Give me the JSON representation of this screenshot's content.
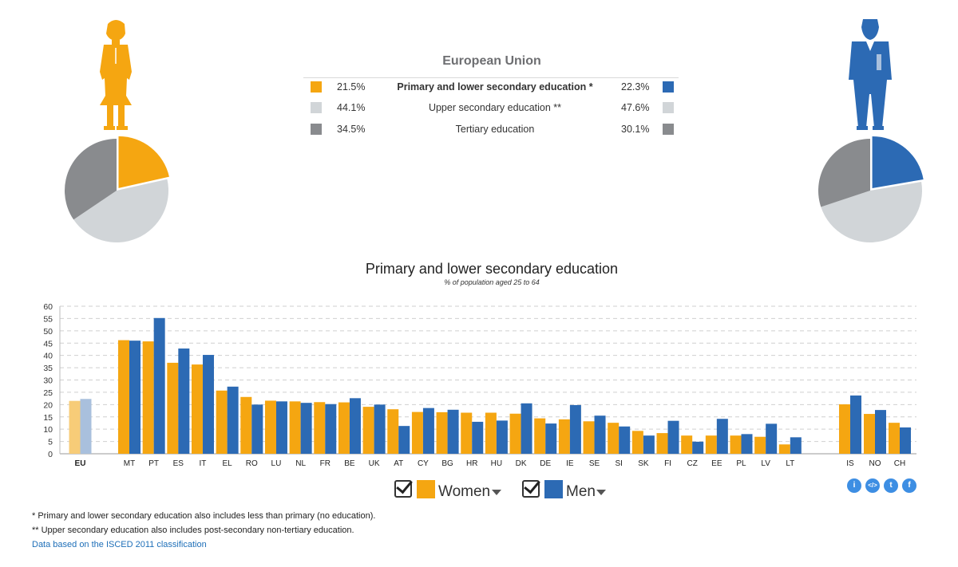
{
  "colors": {
    "women": "#f5a611",
    "men": "#2c6ab4",
    "upper": "#d1d5d8",
    "tertiary": "#898b8e",
    "eu_women": "#f7cc78",
    "eu_men": "#a9c0dd"
  },
  "eu_summary": {
    "title": "European Union",
    "rows": [
      {
        "women": "21.5%",
        "label": "Primary and lower secondary education *",
        "men": "22.3%"
      },
      {
        "women": "44.1%",
        "label": "Upper secondary education **",
        "men": "47.6%"
      },
      {
        "women": "34.5%",
        "label": "Tertiary education",
        "men": "30.1%"
      }
    ]
  },
  "pies": {
    "women": [
      21.5,
      44.1,
      34.5
    ],
    "men": [
      22.3,
      47.6,
      30.1
    ]
  },
  "chart_data": {
    "type": "bar",
    "title": "Primary and lower secondary education",
    "subtitle": "% of population aged 25 to 64",
    "ylim": [
      0,
      60
    ],
    "yticks": [
      0,
      5,
      10,
      15,
      20,
      25,
      30,
      35,
      40,
      45,
      50,
      55,
      60
    ],
    "grid": true,
    "categories": [
      "EU",
      "MT",
      "PT",
      "ES",
      "IT",
      "EL",
      "RO",
      "LU",
      "NL",
      "FR",
      "BE",
      "UK",
      "AT",
      "CY",
      "BG",
      "HR",
      "HU",
      "DK",
      "DE",
      "IE",
      "SE",
      "SI",
      "SK",
      "FI",
      "CZ",
      "EE",
      "PL",
      "LV",
      "LT",
      "IS",
      "NO",
      "CH"
    ],
    "series": [
      {
        "name": "Women",
        "values": [
          21.5,
          46.2,
          45.7,
          37.0,
          36.3,
          25.7,
          23.1,
          21.6,
          21.3,
          21.0,
          20.9,
          19.1,
          18.1,
          17.0,
          16.9,
          16.7,
          16.7,
          16.3,
          14.4,
          14.0,
          13.2,
          12.6,
          9.3,
          8.4,
          7.4,
          7.4,
          7.4,
          6.9,
          3.8,
          20.1,
          16.2,
          12.6
        ]
      },
      {
        "name": "Men",
        "values": [
          22.3,
          46.0,
          55.2,
          42.8,
          40.2,
          27.3,
          20.0,
          21.3,
          20.7,
          20.2,
          22.6,
          20.0,
          11.3,
          18.6,
          17.9,
          13.0,
          13.5,
          20.5,
          12.3,
          19.8,
          15.5,
          11.1,
          7.4,
          13.4,
          4.9,
          14.2,
          8.0,
          12.2,
          6.7,
          23.7,
          17.8,
          10.7
        ]
      }
    ]
  },
  "legend": {
    "women": "Women",
    "men": "Men"
  },
  "social_icons": [
    "info-icon",
    "embed-icon",
    "twitter-icon",
    "facebook-icon"
  ],
  "footnotes": {
    "note1": "* Primary and lower secondary education also includes less than primary (no education).",
    "note2": "** Upper secondary education also includes post-secondary non-tertiary education.",
    "link": "Data based on the ISCED 2011 classification"
  }
}
